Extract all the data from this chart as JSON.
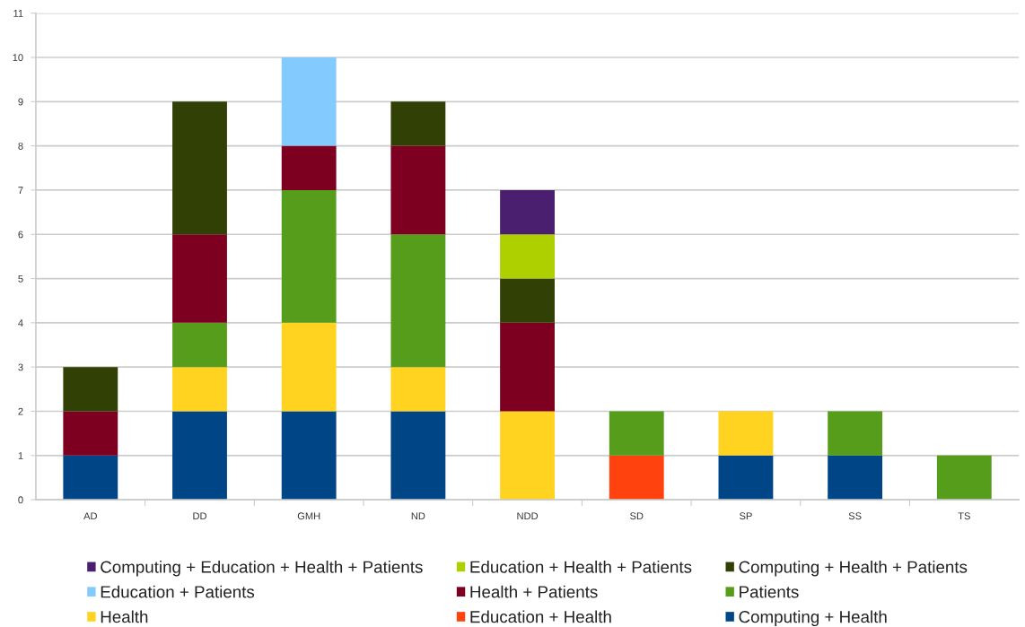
{
  "chart_data": {
    "type": "bar",
    "stacked": true,
    "categories": [
      "AD",
      "DD",
      "GMH",
      "ND",
      "NDD",
      "SD",
      "SP",
      "SS",
      "TS"
    ],
    "series": [
      {
        "name": "Computing + Health",
        "color": "#004586",
        "values": [
          1,
          2,
          2,
          2,
          null,
          null,
          1,
          1,
          null
        ]
      },
      {
        "name": "Education + Health",
        "color": "#ff420e",
        "values": [
          null,
          null,
          null,
          null,
          null,
          1,
          null,
          null,
          null
        ]
      },
      {
        "name": "Health",
        "color": "#ffd320",
        "values": [
          null,
          1,
          2,
          1,
          2,
          null,
          1,
          null,
          null
        ]
      },
      {
        "name": "Patients",
        "color": "#579d1c",
        "values": [
          null,
          1,
          3,
          3,
          null,
          1,
          null,
          1,
          1
        ]
      },
      {
        "name": "Health + Patients",
        "color": "#7e0021",
        "values": [
          1,
          2,
          1,
          2,
          2,
          null,
          null,
          null,
          null
        ]
      },
      {
        "name": "Education + Patients",
        "color": "#83caff",
        "values": [
          null,
          null,
          2,
          null,
          null,
          null,
          null,
          null,
          null
        ]
      },
      {
        "name": "Computing + Health + Patients",
        "color": "#314004",
        "values": [
          1,
          3,
          null,
          1,
          1,
          null,
          null,
          null,
          null
        ]
      },
      {
        "name": "Education + Health + Patients",
        "color": "#aecf00",
        "values": [
          null,
          null,
          null,
          null,
          1,
          null,
          null,
          null,
          null
        ]
      },
      {
        "name": "Computing + Education + Health + Patients",
        "color": "#4b1f6f",
        "values": [
          null,
          null,
          null,
          null,
          1,
          null,
          null,
          null,
          null
        ]
      }
    ],
    "ylim": [
      0,
      11
    ],
    "yticks": [
      0,
      1,
      2,
      3,
      4,
      5,
      6,
      7,
      8,
      9,
      10,
      11
    ],
    "grid": "y",
    "legend": "bottom"
  }
}
